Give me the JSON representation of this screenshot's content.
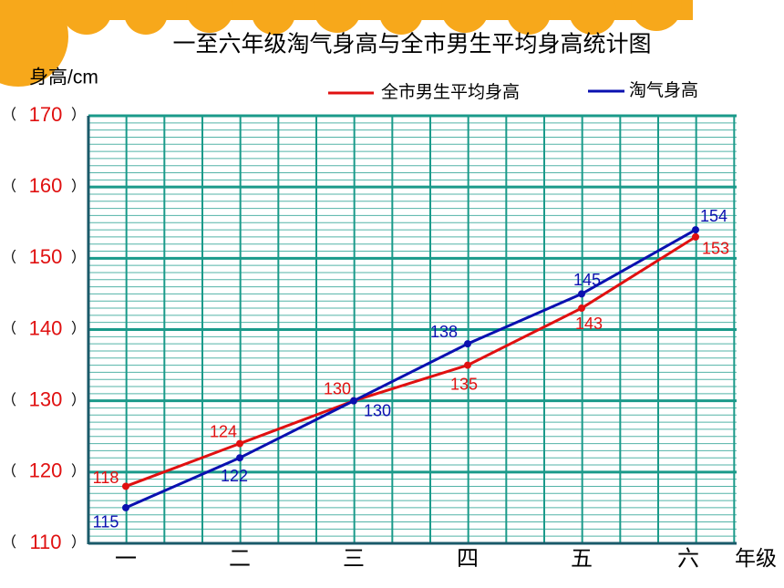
{
  "chart_data": {
    "type": "line",
    "title": "一至六年级淘气身高与全市男生平均身高统计图",
    "y_label": "身高/cm",
    "x_label": "年级",
    "categories": [
      "一",
      "二",
      "三",
      "四",
      "五",
      "六"
    ],
    "series": [
      {
        "name": "全市男生平均身高",
        "color": "#e01010",
        "values": [
          118,
          124,
          130,
          135,
          143,
          153
        ]
      },
      {
        "name": "淘气身高",
        "color": "#0a10b0",
        "values": [
          115,
          122,
          130,
          138,
          145,
          154
        ]
      }
    ],
    "ylim": [
      110,
      170
    ],
    "yticks": [
      110,
      120,
      130,
      140,
      150,
      160,
      170
    ],
    "y_tick_brackets": [
      "（",
      "）"
    ],
    "grid": true,
    "grid_color": "#1a9a8a"
  }
}
